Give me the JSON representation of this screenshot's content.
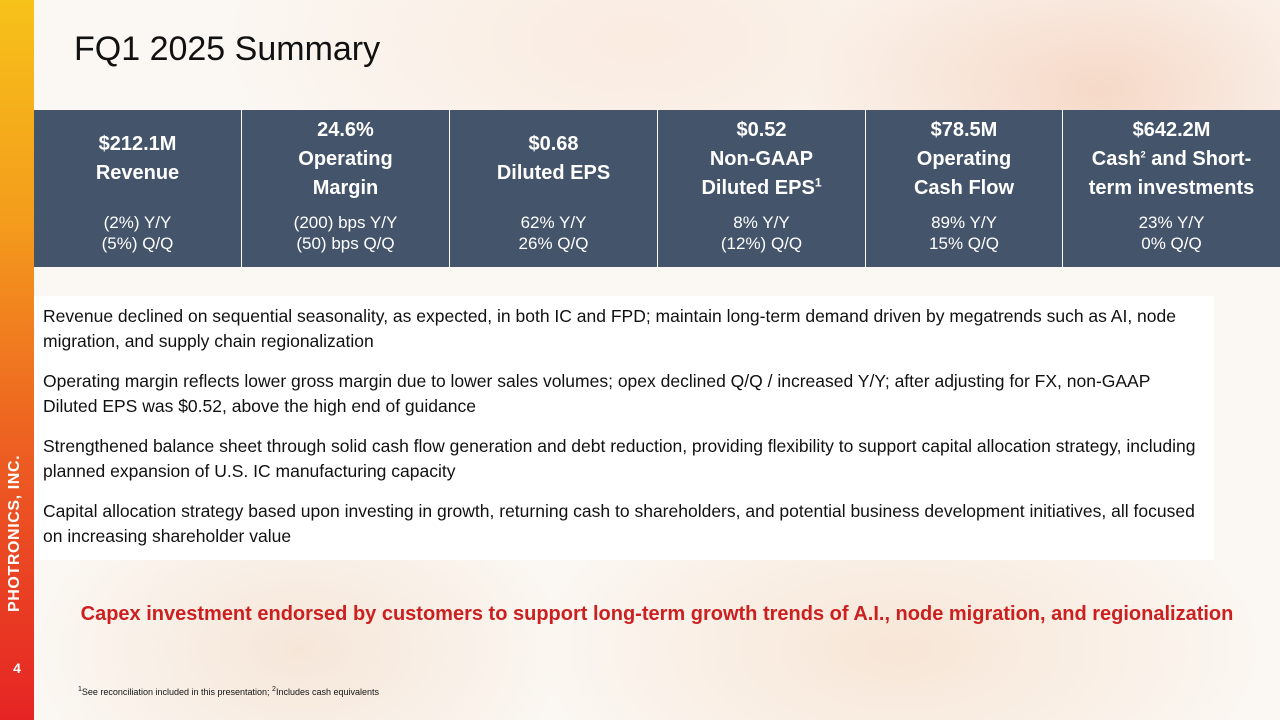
{
  "slide": {
    "title": "FQ1 2025 Summary",
    "page_number": "4",
    "brand": "PHOTRONICS, INC."
  },
  "metrics": [
    {
      "value": "$212.1M",
      "label": "Revenue",
      "yy": "(2%) Y/Y",
      "qq": "(5%) Q/Q"
    },
    {
      "value": "24.6%",
      "label_line1": "Operating",
      "label_line2": "Margin",
      "yy": "(200) bps Y/Y",
      "qq": "(50) bps Q/Q"
    },
    {
      "value": "$0.68",
      "label": "Diluted EPS",
      "yy": "62% Y/Y",
      "qq": "26% Q/Q"
    },
    {
      "value": "$0.52",
      "label_line1": "Non-GAAP",
      "label_line2": "Diluted EPS",
      "footnote_mark": "1",
      "yy": "8% Y/Y",
      "qq": "(12%) Q/Q"
    },
    {
      "value": "$78.5M",
      "label_line1": "Operating",
      "label_line2": "Cash Flow",
      "yy": "89% Y/Y",
      "qq": "15% Q/Q"
    },
    {
      "value": "$642.2M",
      "label_line1a": "Cash",
      "footnote_mark": "2",
      "label_line1b": " and Short-",
      "label_line2": "term investments",
      "yy": "23% Y/Y",
      "qq": "0% Q/Q"
    }
  ],
  "bullets": [
    "Revenue declined on sequential seasonality, as expected, in both IC and FPD; maintain long-term demand driven by megatrends such as AI, node migration, and supply chain regionalization",
    "Operating margin reflects lower gross margin due to lower sales volumes; opex declined Q/Q / increased Y/Y; after adjusting for FX, non-GAAP Diluted EPS was $0.52, above the high end of guidance",
    "Strengthened balance sheet through solid cash flow generation and debt reduction, providing flexibility to support capital allocation strategy, including planned expansion of U.S. IC manufacturing capacity",
    "Capital allocation strategy based upon investing in growth, returning cash to shareholders, and potential business development initiatives, all focused on increasing shareholder value"
  ],
  "callout": "Capex investment endorsed by customers to support long-term growth trends of A.I., node migration, and regionalization",
  "footnote": {
    "mark1": "1",
    "text1": "See reconciliation included in this presentation; ",
    "mark2": "2",
    "text2": "Includes cash equivalents"
  },
  "colors": {
    "table_bg": "#44546a",
    "callout_text": "#cc1f1f",
    "side_bar_top": "#f7c21a",
    "side_bar_bottom": "#e62424"
  }
}
